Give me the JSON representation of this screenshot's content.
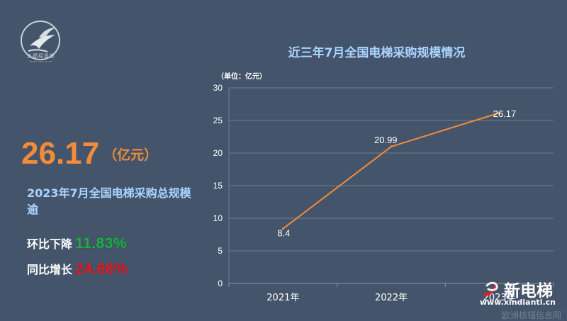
{
  "brand": {
    "logo_text": "五福经投部",
    "logo_sub": "WUFU TOU ZI BU"
  },
  "highlight": {
    "value": "26.17",
    "unit": "（亿元）",
    "description": "2023年7月全国电梯采购总规模逾"
  },
  "metrics": [
    {
      "label": "环比下降",
      "value": "11.83%",
      "color": "#1fae45"
    },
    {
      "label": "同比增长",
      "value": "24.68%",
      "color": "#e31c23"
    }
  ],
  "watermark": {
    "name": "新电梯",
    "url": "www.xindianti.cn",
    "faded": "欧洲核辐信息网"
  },
  "colors": {
    "background": "#44546a",
    "accent": "#f08c3a",
    "title": "#a9d4ff",
    "gridline": "#6f7d8f"
  },
  "chart_data": {
    "type": "line",
    "title": "近三年7月全国电梯采购规模情况",
    "unit_label": "（单位：亿元）",
    "xlabel": "",
    "ylabel": "",
    "categories": [
      "2021年",
      "2022年",
      "2023年"
    ],
    "series": [
      {
        "values": [
          8.4,
          20.99,
          26.17
        ],
        "color": "#f08c3a"
      }
    ],
    "data_labels": [
      "8.4",
      "20.99",
      "26.17"
    ],
    "ylim": [
      0,
      30
    ],
    "yticks": [
      "0",
      "5",
      "10",
      "15",
      "20",
      "25",
      "30"
    ],
    "grid": true
  }
}
